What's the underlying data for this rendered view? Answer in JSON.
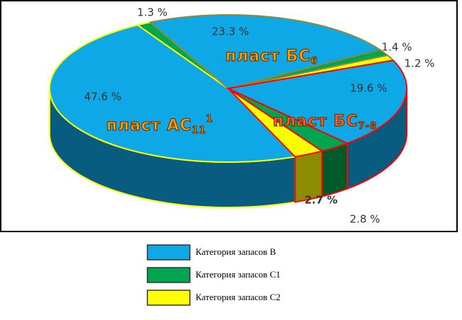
{
  "chart_data": {
    "type": "pie3d",
    "groups": [
      {
        "name": {
          "text": "пласт АС",
          "sub": "11",
          "sup": "1"
        },
        "border": "#ffff00",
        "values": [
          47.6,
          1.3
        ],
        "value_labels": [
          "47.6 %",
          "1.3 %"
        ],
        "colors": [
          "#0fa8e6",
          "#00a54f"
        ]
      },
      {
        "name": {
          "text": "пласт БС",
          "sub": "6"
        },
        "border": "#8c8a3c",
        "values": [
          23.3,
          1.4,
          1.2
        ],
        "value_labels": [
          "23.3 %",
          "1.4 %",
          "1.2 %"
        ],
        "colors": [
          "#0fa8e6",
          "#00a54f",
          "#ffff00"
        ]
      },
      {
        "name": {
          "text": "пласт БС",
          "sub": "7-8"
        },
        "border": "#ff0000",
        "values": [
          19.6,
          2.8,
          2.7
        ],
        "value_labels": [
          "19.6 %",
          "2.8 %",
          "2.7 %"
        ],
        "colors": [
          "#0fa8e6",
          "#00a54f",
          "#ffff00"
        ]
      }
    ],
    "legend": [
      {
        "label": "Категория запасов В",
        "color": "#0fa8e6"
      },
      {
        "label": "Категория запасов С1",
        "color": "#00a54f"
      },
      {
        "label": "Категория запасов С2",
        "color": "#ffff00"
      }
    ]
  }
}
